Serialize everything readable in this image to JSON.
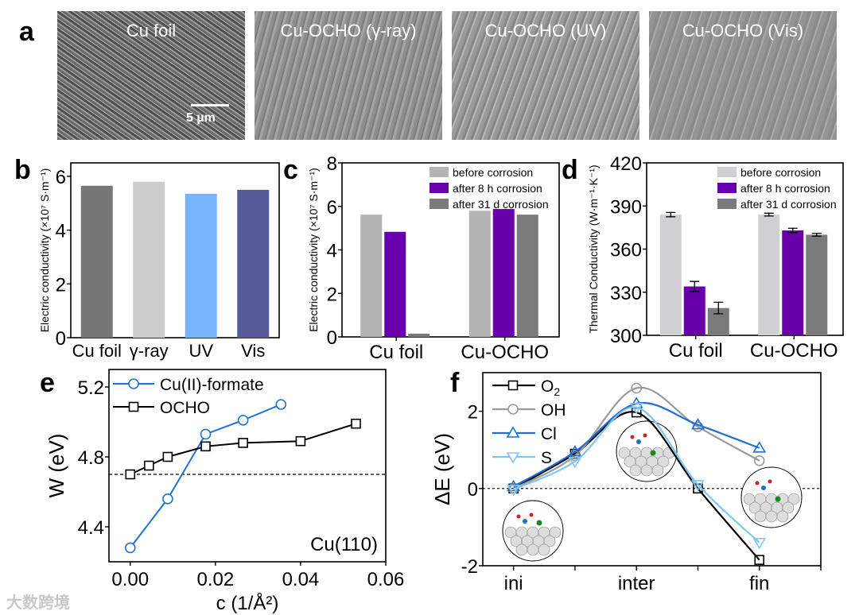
{
  "panel_labels": [
    "a",
    "b",
    "c",
    "d",
    "e",
    "f"
  ],
  "sem_images": [
    {
      "title": "Cu foil",
      "scale_bar": "5 µm"
    },
    {
      "title": "Cu-OCHO (γ-ray)"
    },
    {
      "title": "Cu-OCHO (UV)"
    },
    {
      "title": "Cu-OCHO (Vis)"
    }
  ],
  "watermark": "大数跨境",
  "chart_data": [
    {
      "id": "b",
      "type": "bar",
      "categories": [
        "Cu foil",
        "γ-ray",
        "UV",
        "Vis"
      ],
      "values": [
        5.65,
        5.8,
        5.35,
        5.5
      ],
      "colors": [
        "#777777",
        "#cccccd",
        "#78b4fb",
        "#575a96"
      ],
      "ylabel": "Electric conductivity (×10⁷ S·m⁻¹)",
      "ylim": [
        0,
        6.5
      ],
      "yticks": [
        "0",
        "2",
        "4",
        "6"
      ]
    },
    {
      "id": "c",
      "type": "bar",
      "categories": [
        "Cu foil",
        "Cu-OCHO"
      ],
      "series": [
        {
          "name": "before corrosion",
          "values": [
            5.62,
            5.8
          ],
          "color": "#b4b4b4"
        },
        {
          "name": "after 8 h corrosion",
          "values": [
            4.83,
            5.88
          ],
          "color": "#6700a8"
        },
        {
          "name": "after 31 d corrosion",
          "values": [
            0.15,
            5.62
          ],
          "color": "#7a7a7a"
        }
      ],
      "ylabel": "Electric conductivity (×10⁷ S·m⁻¹)",
      "ylim": [
        0,
        8
      ],
      "yticks": [
        "0",
        "2",
        "4",
        "6",
        "8"
      ],
      "legend": "top-right"
    },
    {
      "id": "d",
      "type": "bar",
      "categories": [
        "Cu foil",
        "Cu-OCHO"
      ],
      "series": [
        {
          "name": "before corrosion",
          "values": [
            384,
            384
          ],
          "errors": [
            1.5,
            1
          ],
          "color": "#d0d0d2"
        },
        {
          "name": "after 8 h corrosion",
          "values": [
            334,
            373
          ],
          "errors": [
            3.5,
            1.5
          ],
          "color": "#6700a8"
        },
        {
          "name": "after 31 d corrosion",
          "values": [
            319,
            370
          ],
          "errors": [
            4,
            1
          ],
          "color": "#7a7a7a"
        }
      ],
      "ylabel": "Thermal Conductivity (W·m⁻¹·K⁻¹)",
      "ylim": [
        300,
        420
      ],
      "yticks": [
        "300",
        "330",
        "360",
        "390",
        "420"
      ],
      "legend": "top-right"
    },
    {
      "id": "e",
      "type": "line",
      "xlabel": "c (1/Å²)",
      "ylabel": "W (eV)",
      "xlim": [
        -0.005,
        0.06
      ],
      "ylim": [
        4.2,
        5.3
      ],
      "xticks": [
        "0.00",
        "0.02",
        "0.04",
        "0.06"
      ],
      "yticks": [
        "4.4",
        "4.8",
        "5.2"
      ],
      "reference_line": 4.7,
      "annotation": "Cu(110)",
      "legend": "top-left",
      "series": [
        {
          "name": "Cu(II)-formate",
          "marker": "circle",
          "color": "#1f73d2",
          "x": [
            0,
            0.0088,
            0.0177,
            0.0265,
            0.0354
          ],
          "y": [
            4.28,
            4.56,
            4.93,
            5.01,
            5.1
          ]
        },
        {
          "name": "OCHO",
          "marker": "square",
          "color": "#000000",
          "x": [
            0,
            0.0044,
            0.0088,
            0.0177,
            0.0265,
            0.04,
            0.053
          ],
          "y": [
            4.7,
            4.75,
            4.8,
            4.86,
            4.88,
            4.89,
            4.99
          ]
        }
      ]
    },
    {
      "id": "f",
      "type": "line",
      "xlabel": "",
      "ylabel": "ΔE (eV)",
      "categories": [
        "ini",
        "",
        "inter",
        "",
        "fin"
      ],
      "xticks": [
        "ini",
        "inter",
        "fin"
      ],
      "ylim": [
        -2,
        3
      ],
      "yticks": [
        "-2",
        "0",
        "2"
      ],
      "reference_line": 0,
      "legend": "top-left",
      "series": [
        {
          "name": "O2",
          "label_main": "O",
          "label_sub": "2",
          "marker": "square",
          "color": "#000000",
          "y": [
            0,
            0.9,
            1.97,
            0,
            -1.85
          ]
        },
        {
          "name": "OH",
          "marker": "circle",
          "color": "#9a9a9a",
          "y": [
            0,
            0.85,
            2.6,
            1.6,
            0.72
          ]
        },
        {
          "name": "Cl",
          "marker": "triangle-up",
          "color": "#1f6fd0",
          "y": [
            0.05,
            0.95,
            2.2,
            1.65,
            1.05
          ]
        },
        {
          "name": "S",
          "marker": "triangle-down",
          "color": "#7fc6f5",
          "y": [
            -0.02,
            0.7,
            2.1,
            0.1,
            -1.4
          ]
        }
      ]
    }
  ]
}
